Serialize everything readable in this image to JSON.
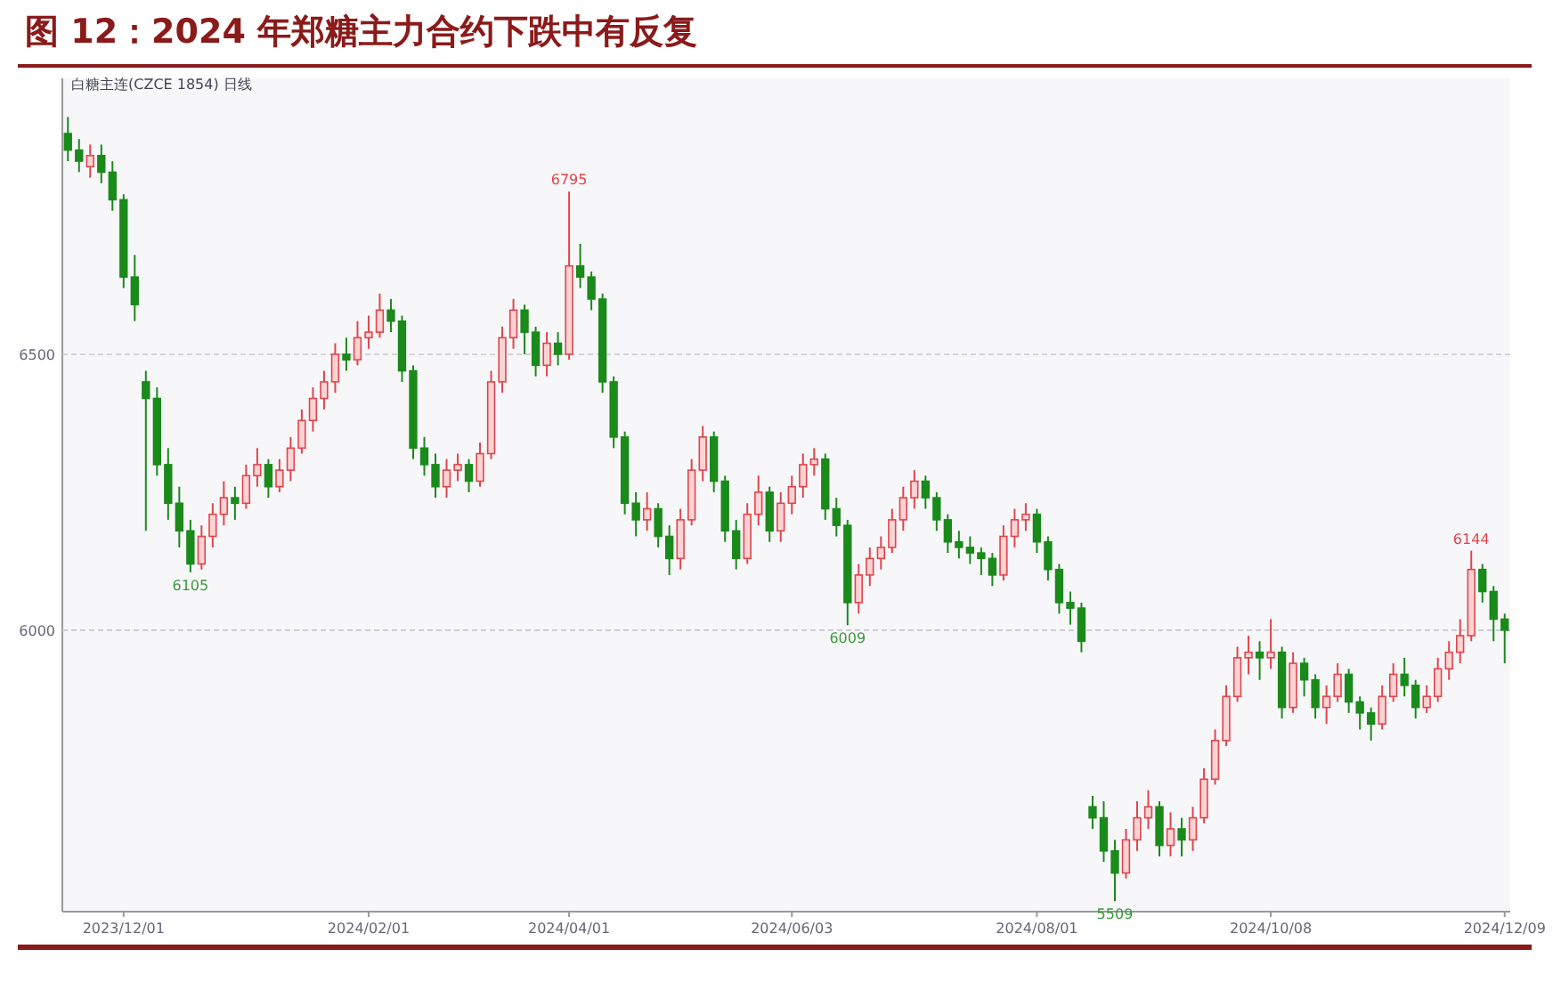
{
  "chart_data": {
    "type": "candlestick",
    "title": "图 12：2024 年郑糖主力合约下跌中有反复",
    "subtitle": "白糖主连(CZCE 1854) 日线",
    "categories": [
      null,
      null,
      null,
      null,
      null,
      "2023/12/01",
      null,
      null,
      null,
      null,
      null,
      null,
      null,
      null,
      null,
      null,
      null,
      null,
      null,
      null,
      null,
      null,
      null,
      null,
      null,
      null,
      null,
      "2024/02/01",
      null,
      null,
      null,
      null,
      null,
      null,
      null,
      null,
      null,
      null,
      null,
      null,
      null,
      null,
      null,
      null,
      null,
      "2024/04/01",
      null,
      null,
      null,
      null,
      null,
      null,
      null,
      null,
      null,
      null,
      null,
      null,
      null,
      null,
      null,
      null,
      null,
      null,
      null,
      "2024/06/03",
      null,
      null,
      null,
      null,
      null,
      null,
      null,
      null,
      null,
      null,
      null,
      null,
      null,
      null,
      null,
      null,
      null,
      null,
      null,
      null,
      null,
      "2024/08/01",
      null,
      null,
      null,
      null,
      null,
      null,
      null,
      null,
      null,
      null,
      null,
      null,
      null,
      null,
      null,
      null,
      null,
      null,
      null,
      null,
      "2024/10/08",
      null,
      null,
      null,
      null,
      null,
      null,
      null,
      null,
      null,
      null,
      null,
      null,
      null,
      null,
      null,
      null,
      null,
      null,
      null,
      null,
      "2024/12/09"
    ],
    "ohlc": [
      [
        6900,
        6930,
        6850,
        6870
      ],
      [
        6870,
        6890,
        6830,
        6850
      ],
      [
        6840,
        6880,
        6820,
        6860
      ],
      [
        6860,
        6880,
        6810,
        6830
      ],
      [
        6830,
        6850,
        6760,
        6780
      ],
      [
        6780,
        6790,
        6620,
        6640
      ],
      [
        6640,
        6680,
        6560,
        6590
      ],
      [
        6450,
        6470,
        6180,
        6420
      ],
      [
        6420,
        6440,
        6280,
        6300
      ],
      [
        6300,
        6330,
        6200,
        6230
      ],
      [
        6230,
        6260,
        6150,
        6180
      ],
      [
        6180,
        6200,
        6105,
        6120
      ],
      [
        6120,
        6190,
        6110,
        6170
      ],
      [
        6170,
        6230,
        6150,
        6210
      ],
      [
        6210,
        6270,
        6190,
        6240
      ],
      [
        6240,
        6260,
        6200,
        6230
      ],
      [
        6230,
        6300,
        6220,
        6280
      ],
      [
        6280,
        6330,
        6260,
        6300
      ],
      [
        6300,
        6310,
        6240,
        6260
      ],
      [
        6260,
        6310,
        6250,
        6290
      ],
      [
        6290,
        6350,
        6270,
        6330
      ],
      [
        6330,
        6400,
        6320,
        6380
      ],
      [
        6380,
        6440,
        6360,
        6420
      ],
      [
        6420,
        6470,
        6400,
        6450
      ],
      [
        6450,
        6520,
        6430,
        6500
      ],
      [
        6500,
        6530,
        6470,
        6490
      ],
      [
        6490,
        6560,
        6480,
        6530
      ],
      [
        6530,
        6570,
        6510,
        6540
      ],
      [
        6540,
        6610,
        6530,
        6580
      ],
      [
        6580,
        6600,
        6540,
        6560
      ],
      [
        6560,
        6570,
        6450,
        6470
      ],
      [
        6470,
        6480,
        6310,
        6330
      ],
      [
        6330,
        6350,
        6280,
        6300
      ],
      [
        6300,
        6320,
        6240,
        6260
      ],
      [
        6260,
        6310,
        6240,
        6290
      ],
      [
        6290,
        6320,
        6270,
        6300
      ],
      [
        6300,
        6310,
        6250,
        6270
      ],
      [
        6270,
        6340,
        6260,
        6320
      ],
      [
        6320,
        6470,
        6310,
        6450
      ],
      [
        6450,
        6550,
        6430,
        6530
      ],
      [
        6530,
        6600,
        6510,
        6580
      ],
      [
        6580,
        6590,
        6500,
        6540
      ],
      [
        6540,
        6550,
        6460,
        6480
      ],
      [
        6480,
        6540,
        6460,
        6520
      ],
      [
        6520,
        6540,
        6480,
        6500
      ],
      [
        6500,
        6795,
        6490,
        6660
      ],
      [
        6660,
        6700,
        6620,
        6640
      ],
      [
        6640,
        6650,
        6580,
        6600
      ],
      [
        6600,
        6610,
        6430,
        6450
      ],
      [
        6450,
        6460,
        6330,
        6350
      ],
      [
        6350,
        6360,
        6210,
        6230
      ],
      [
        6230,
        6250,
        6170,
        6200
      ],
      [
        6200,
        6250,
        6180,
        6220
      ],
      [
        6220,
        6230,
        6150,
        6170
      ],
      [
        6170,
        6190,
        6100,
        6130
      ],
      [
        6130,
        6220,
        6110,
        6200
      ],
      [
        6200,
        6310,
        6190,
        6290
      ],
      [
        6290,
        6370,
        6270,
        6350
      ],
      [
        6350,
        6360,
        6250,
        6270
      ],
      [
        6270,
        6280,
        6160,
        6180
      ],
      [
        6180,
        6200,
        6110,
        6130
      ],
      [
        6130,
        6230,
        6120,
        6210
      ],
      [
        6210,
        6280,
        6190,
        6250
      ],
      [
        6250,
        6260,
        6160,
        6180
      ],
      [
        6180,
        6250,
        6160,
        6230
      ],
      [
        6230,
        6280,
        6210,
        6260
      ],
      [
        6260,
        6320,
        6240,
        6300
      ],
      [
        6300,
        6330,
        6280,
        6310
      ],
      [
        6310,
        6320,
        6200,
        6220
      ],
      [
        6220,
        6240,
        6170,
        6190
      ],
      [
        6190,
        6200,
        6009,
        6050
      ],
      [
        6050,
        6120,
        6030,
        6100
      ],
      [
        6100,
        6150,
        6080,
        6130
      ],
      [
        6130,
        6170,
        6110,
        6150
      ],
      [
        6150,
        6220,
        6140,
        6200
      ],
      [
        6200,
        6260,
        6180,
        6240
      ],
      [
        6240,
        6290,
        6220,
        6270
      ],
      [
        6270,
        6280,
        6220,
        6240
      ],
      [
        6240,
        6250,
        6180,
        6200
      ],
      [
        6200,
        6210,
        6140,
        6160
      ],
      [
        6160,
        6180,
        6130,
        6150
      ],
      [
        6150,
        6170,
        6120,
        6140
      ],
      [
        6140,
        6150,
        6100,
        6130
      ],
      [
        6130,
        6140,
        6080,
        6100
      ],
      [
        6100,
        6190,
        6090,
        6170
      ],
      [
        6170,
        6220,
        6150,
        6200
      ],
      [
        6200,
        6230,
        6180,
        6210
      ],
      [
        6210,
        6220,
        6140,
        6160
      ],
      [
        6160,
        6170,
        6090,
        6110
      ],
      [
        6110,
        6120,
        6030,
        6050
      ],
      [
        6050,
        6070,
        6010,
        6040
      ],
      [
        6040,
        6050,
        5960,
        5980
      ],
      [
        5680,
        5700,
        5640,
        5660
      ],
      [
        5660,
        5690,
        5580,
        5600
      ],
      [
        5600,
        5620,
        5509,
        5560
      ],
      [
        5560,
        5640,
        5550,
        5620
      ],
      [
        5620,
        5690,
        5600,
        5660
      ],
      [
        5660,
        5710,
        5640,
        5680
      ],
      [
        5680,
        5690,
        5590,
        5610
      ],
      [
        5610,
        5670,
        5590,
        5640
      ],
      [
        5640,
        5660,
        5590,
        5620
      ],
      [
        5620,
        5680,
        5600,
        5660
      ],
      [
        5660,
        5750,
        5650,
        5730
      ],
      [
        5730,
        5820,
        5720,
        5800
      ],
      [
        5800,
        5900,
        5790,
        5880
      ],
      [
        5880,
        5970,
        5870,
        5950
      ],
      [
        5950,
        5990,
        5920,
        5960
      ],
      [
        5960,
        5980,
        5910,
        5950
      ],
      [
        5950,
        6020,
        5930,
        5960
      ],
      [
        5960,
        5970,
        5840,
        5860
      ],
      [
        5860,
        5960,
        5850,
        5940
      ],
      [
        5940,
        5950,
        5880,
        5910
      ],
      [
        5910,
        5920,
        5840,
        5860
      ],
      [
        5860,
        5900,
        5830,
        5880
      ],
      [
        5880,
        5940,
        5870,
        5920
      ],
      [
        5920,
        5930,
        5850,
        5870
      ],
      [
        5870,
        5880,
        5820,
        5850
      ],
      [
        5850,
        5860,
        5800,
        5830
      ],
      [
        5830,
        5900,
        5820,
        5880
      ],
      [
        5880,
        5940,
        5870,
        5920
      ],
      [
        5920,
        5950,
        5880,
        5900
      ],
      [
        5900,
        5910,
        5840,
        5860
      ],
      [
        5860,
        5900,
        5850,
        5880
      ],
      [
        5880,
        5950,
        5870,
        5930
      ],
      [
        5930,
        5980,
        5910,
        5960
      ],
      [
        5960,
        6020,
        5940,
        5990
      ],
      [
        5990,
        6144,
        5980,
        6110
      ],
      [
        6110,
        6120,
        6050,
        6070
      ],
      [
        6070,
        6080,
        5980,
        6020
      ],
      [
        6020,
        6030,
        5940,
        6000
      ]
    ],
    "ylim": [
      5490,
      7000
    ],
    "yticks": [
      6000,
      6500
    ],
    "grid": "y",
    "annotations": [
      {
        "text": "6795",
        "y": 6795
      },
      {
        "text": "6105",
        "y": 6105
      },
      {
        "text": "6009",
        "y": 6009
      },
      {
        "text": "5509",
        "y": 5509
      },
      {
        "text": "6144",
        "y": 6144
      }
    ]
  }
}
